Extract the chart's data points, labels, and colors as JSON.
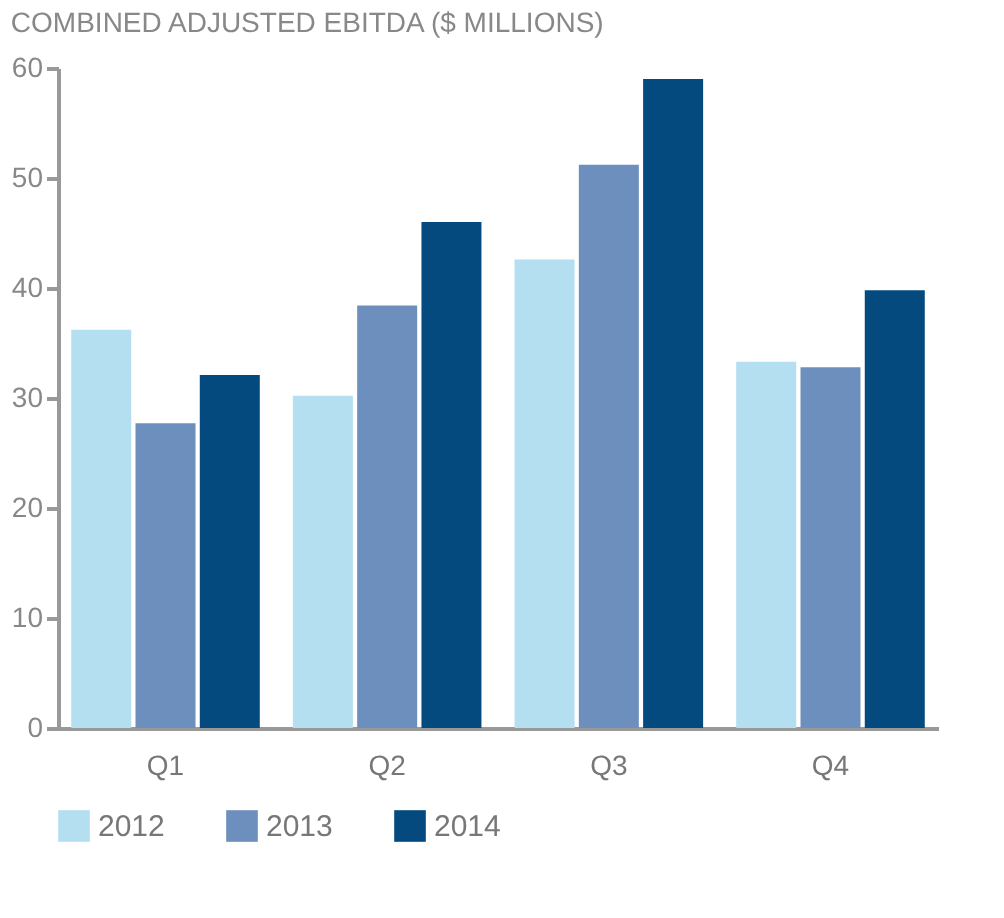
{
  "chart_data": {
    "type": "bar",
    "title": "COMBINED ADJUSTED EBITDA ($ MILLIONS)",
    "categories": [
      "Q1",
      "Q2",
      "Q3",
      "Q4"
    ],
    "series": [
      {
        "name": "2012",
        "color": "#b3dff0",
        "values": [
          36.2,
          30.2,
          42.6,
          33.3
        ]
      },
      {
        "name": "2013",
        "color": "#6d8fbd",
        "values": [
          27.7,
          38.4,
          51.2,
          32.8
        ]
      },
      {
        "name": "2014",
        "color": "#044a7e",
        "values": [
          32.1,
          46,
          59,
          39.8
        ]
      }
    ],
    "ylim": [
      0,
      60
    ],
    "yticks": [
      0,
      10,
      20,
      30,
      40,
      50,
      60
    ],
    "grid": false,
    "legend": "bottom left"
  }
}
